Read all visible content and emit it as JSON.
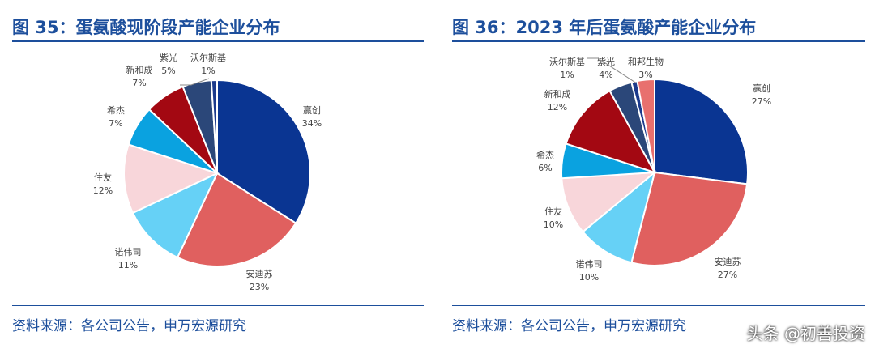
{
  "chart_data": [
    {
      "type": "pie",
      "title": "图 35：蛋氨酸现阶段产能企业分布",
      "source": "资料来源：各公司公告，申万宏源研究",
      "categories": [
        "赢创",
        "安迪苏",
        "诺伟司",
        "住友",
        "希杰",
        "新和成",
        "紫光",
        "沃尔斯基"
      ],
      "values": [
        34,
        23,
        11,
        12,
        7,
        7,
        5,
        1
      ],
      "labels": [
        "34%",
        "23%",
        "11%",
        "12%",
        "7%",
        "7%",
        "5%",
        "1%"
      ],
      "colors": [
        "#0a3592",
        "#e0605f",
        "#66d1f6",
        "#f8d6da",
        "#0aa2e0",
        "#a30812",
        "#2b4779",
        "#1b3a8c"
      ]
    },
    {
      "type": "pie",
      "title": "图 36：2023 年后蛋氨酸产能企业分布",
      "source": "资料来源：各公司公告，申万宏源研究",
      "categories": [
        "赢创",
        "安迪苏",
        "诺伟司",
        "住友",
        "希杰",
        "新和成",
        "紫光",
        "沃尔斯基",
        "和邦生物"
      ],
      "values": [
        27,
        27,
        10,
        10,
        6,
        12,
        4,
        1,
        3
      ],
      "labels": [
        "27%",
        "27%",
        "10%",
        "10%",
        "6%",
        "12%",
        "4%",
        "1%",
        "3%"
      ],
      "colors": [
        "#0a3592",
        "#e0605f",
        "#66d1f6",
        "#f8d6da",
        "#0aa2e0",
        "#a30812",
        "#2b4779",
        "#1b3a8c",
        "#e8706e"
      ]
    }
  ],
  "watermark": "头条 @初善投资"
}
